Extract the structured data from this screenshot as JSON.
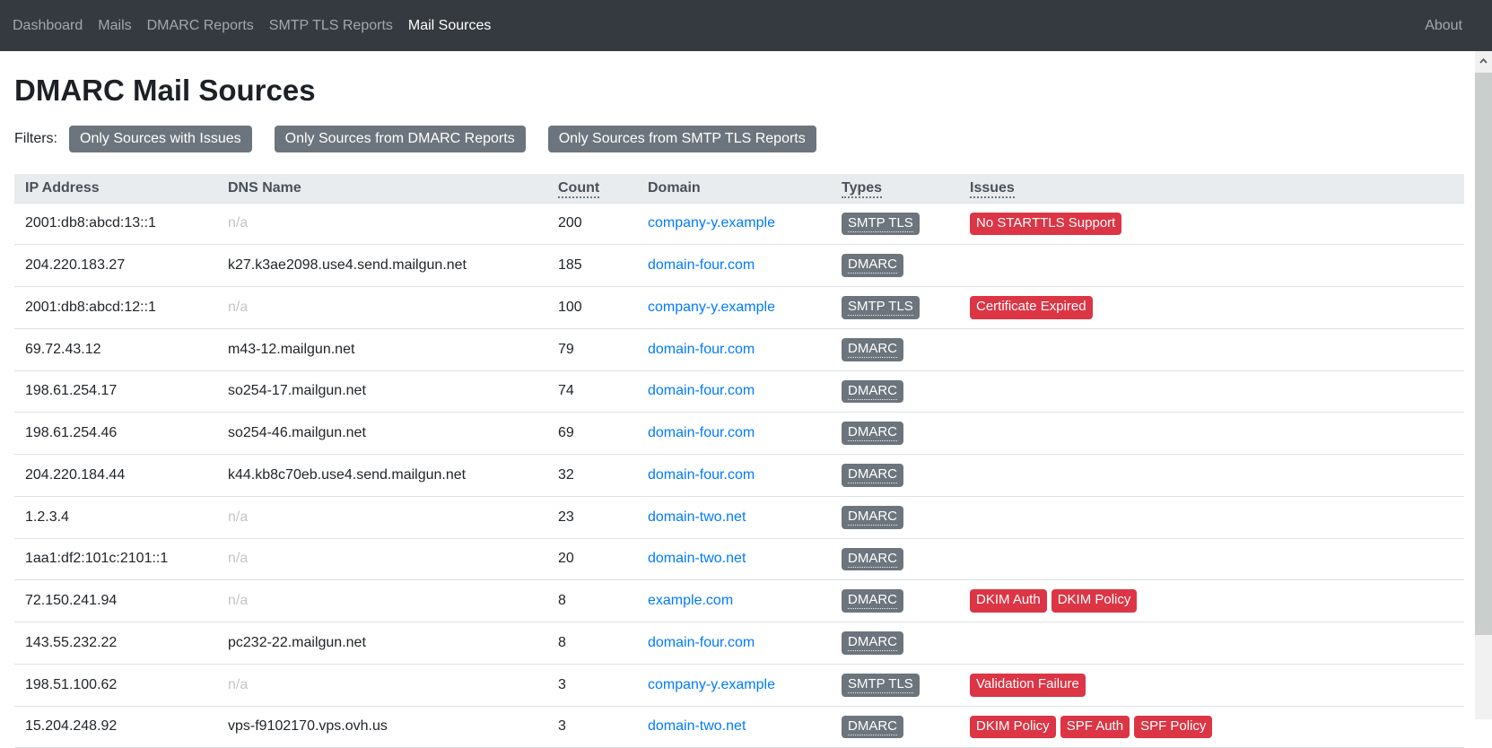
{
  "navbar": {
    "items": [
      {
        "label": "Dashboard",
        "active": false
      },
      {
        "label": "Mails",
        "active": false
      },
      {
        "label": "DMARC Reports",
        "active": false
      },
      {
        "label": "SMTP TLS Reports",
        "active": false
      },
      {
        "label": "Mail Sources",
        "active": true
      }
    ],
    "right_item": {
      "label": "About",
      "active": false
    }
  },
  "page": {
    "title": "DMARC Mail Sources"
  },
  "filters": {
    "label": "Filters:",
    "buttons": [
      "Only Sources with Issues",
      "Only Sources from DMARC Reports",
      "Only Sources from SMTP TLS Reports"
    ]
  },
  "table": {
    "headers": [
      {
        "label": "IP Address",
        "underlined": false
      },
      {
        "label": "DNS Name",
        "underlined": false
      },
      {
        "label": "Count",
        "underlined": true
      },
      {
        "label": "Domain",
        "underlined": false
      },
      {
        "label": "Types",
        "underlined": true
      },
      {
        "label": "Issues",
        "underlined": true
      }
    ],
    "rows": [
      {
        "ip": "2001:db8:abcd:13::1",
        "dns": "n/a",
        "count": "200",
        "domain": "company-y.example",
        "types": [
          "SMTP TLS"
        ],
        "issues": [
          "No STARTTLS Support"
        ]
      },
      {
        "ip": "204.220.183.27",
        "dns": "k27.k3ae2098.use4.send.mailgun.net",
        "count": "185",
        "domain": "domain-four.com",
        "types": [
          "DMARC"
        ],
        "issues": []
      },
      {
        "ip": "2001:db8:abcd:12::1",
        "dns": "n/a",
        "count": "100",
        "domain": "company-y.example",
        "types": [
          "SMTP TLS"
        ],
        "issues": [
          "Certificate Expired"
        ]
      },
      {
        "ip": "69.72.43.12",
        "dns": "m43-12.mailgun.net",
        "count": "79",
        "domain": "domain-four.com",
        "types": [
          "DMARC"
        ],
        "issues": []
      },
      {
        "ip": "198.61.254.17",
        "dns": "so254-17.mailgun.net",
        "count": "74",
        "domain": "domain-four.com",
        "types": [
          "DMARC"
        ],
        "issues": []
      },
      {
        "ip": "198.61.254.46",
        "dns": "so254-46.mailgun.net",
        "count": "69",
        "domain": "domain-four.com",
        "types": [
          "DMARC"
        ],
        "issues": []
      },
      {
        "ip": "204.220.184.44",
        "dns": "k44.kb8c70eb.use4.send.mailgun.net",
        "count": "32",
        "domain": "domain-four.com",
        "types": [
          "DMARC"
        ],
        "issues": []
      },
      {
        "ip": "1.2.3.4",
        "dns": "n/a",
        "count": "23",
        "domain": "domain-two.net",
        "types": [
          "DMARC"
        ],
        "issues": []
      },
      {
        "ip": "1aa1:df2:101c:2101::1",
        "dns": "n/a",
        "count": "20",
        "domain": "domain-two.net",
        "types": [
          "DMARC"
        ],
        "issues": []
      },
      {
        "ip": "72.150.241.94",
        "dns": "n/a",
        "count": "8",
        "domain": "example.com",
        "types": [
          "DMARC"
        ],
        "issues": [
          "DKIM Auth",
          "DKIM Policy"
        ]
      },
      {
        "ip": "143.55.232.22",
        "dns": "pc232-22.mailgun.net",
        "count": "8",
        "domain": "domain-four.com",
        "types": [
          "DMARC"
        ],
        "issues": []
      },
      {
        "ip": "198.51.100.62",
        "dns": "n/a",
        "count": "3",
        "domain": "company-y.example",
        "types": [
          "SMTP TLS"
        ],
        "issues": [
          "Validation Failure"
        ]
      },
      {
        "ip": "15.204.248.92",
        "dns": "vps-f9102170.vps.ovh.us",
        "count": "3",
        "domain": "domain-two.net",
        "types": [
          "DMARC"
        ],
        "issues": [
          "DKIM Policy",
          "SPF Auth",
          "SPF Policy"
        ]
      }
    ],
    "na_text": "n/a"
  },
  "icons": {
    "scroll_up": "chevron-up"
  },
  "colors": {
    "navbar_bg": "#343a40",
    "link_accent": "#007bff",
    "badge_type_bg": "#6c757d",
    "badge_issue_bg": "#dc3545",
    "table_header_bg": "#e9ecef",
    "filter_button_bg": "#6c757d"
  }
}
